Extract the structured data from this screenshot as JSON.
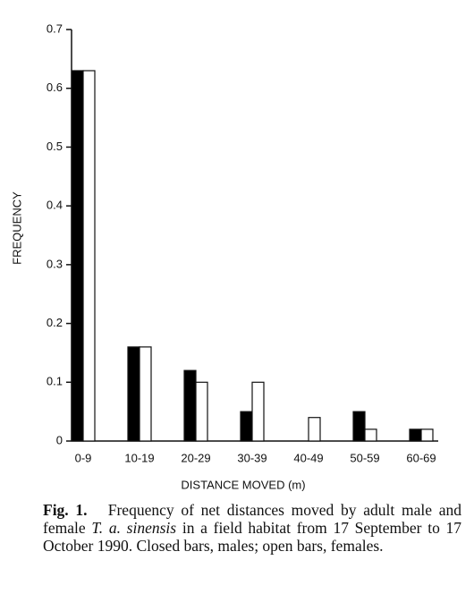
{
  "chart_data": {
    "type": "bar",
    "x_label": "DISTANCE MOVED (m)",
    "y_label": "FREQUENCY",
    "categories": [
      "0-9",
      "10-19",
      "20-29",
      "30-39",
      "40-49",
      "50-59",
      "60-69"
    ],
    "series": [
      {
        "color": "#000000",
        "values": [
          0.63,
          0.16,
          0.12,
          0.05,
          0,
          0.05,
          0.02
        ]
      },
      {
        "color": "#ffffff",
        "values": [
          0.63,
          0.16,
          0.1,
          0.1,
          0.04,
          0.02,
          0.02
        ]
      }
    ],
    "ylim": [
      0,
      0.7
    ],
    "yticks": [
      0,
      0.1,
      0.2,
      0.3,
      0.4,
      0.5,
      0.6,
      0.7
    ]
  },
  "caption": {
    "label": "Fig. 1.",
    "text_before": "Frequency of net distances moved by adult male and female",
    "species": "T. a. sinensis",
    "text_after": "in a field habitat from 17 September to 17 October 1990. Closed bars, males; open bars, females."
  }
}
